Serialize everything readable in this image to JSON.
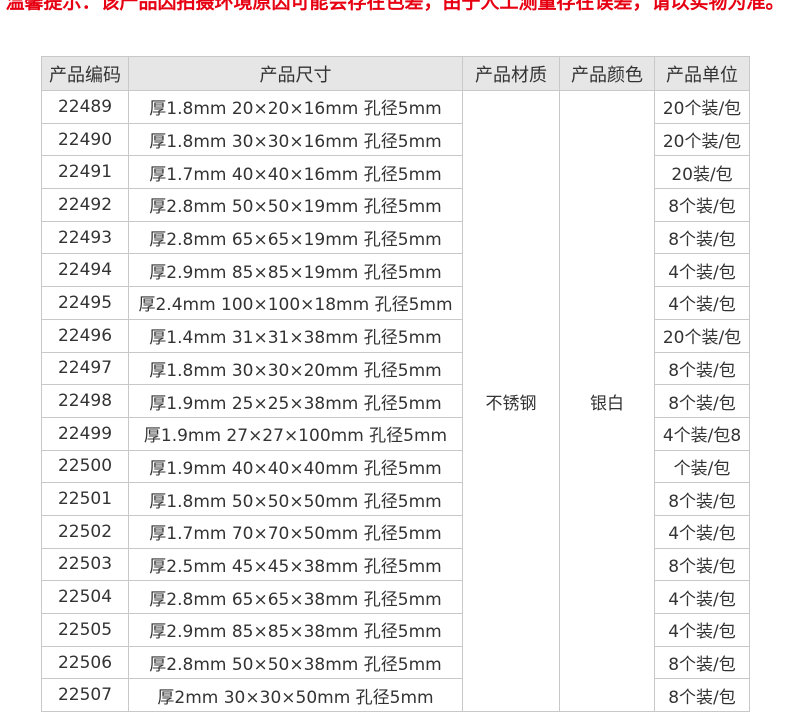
{
  "notice": "温馨提示：该产品因拍摄环境原因可能会存在色差，由于人工测量存在误差，请以实物为准。",
  "headers": [
    "产品编码",
    "产品尺寸",
    "产品材质",
    "产品颜色",
    "产品单位"
  ],
  "material": "不锈钢",
  "color": "银白",
  "rows": [
    {
      "code": "22489",
      "size": "厚1.8mm 20×20×16mm 孔径5mm",
      "unit": "20个装/包"
    },
    {
      "code": "22490",
      "size": "厚1.8mm 30×30×16mm 孔径5mm",
      "unit": "20个装/包"
    },
    {
      "code": "22491",
      "size": "厚1.7mm 40×40×16mm 孔径5mm",
      "unit": "20装/包"
    },
    {
      "code": "22492",
      "size": "厚2.8mm 50×50×19mm 孔径5mm",
      "unit": "8个装/包"
    },
    {
      "code": "22493",
      "size": "厚2.8mm 65×65×19mm 孔径5mm",
      "unit": "8个装/包"
    },
    {
      "code": "22494",
      "size": "厚2.9mm 85×85×19mm 孔径5mm",
      "unit": "4个装/包"
    },
    {
      "code": "22495",
      "size": "厚2.4mm 100×100×18mm 孔径5mm",
      "unit": "4个装/包"
    },
    {
      "code": "22496",
      "size": "厚1.4mm 31×31×38mm 孔径5mm",
      "unit": "20个装/包"
    },
    {
      "code": "22497",
      "size": "厚1.8mm 30×30×20mm 孔径5mm",
      "unit": "8个装/包"
    },
    {
      "code": "22498",
      "size": "厚1.9mm 25×25×38mm 孔径5mm",
      "unit": "8个装/包"
    },
    {
      "code": "22499",
      "size": "厚1.9mm 27×27×100mm 孔径5mm",
      "unit": "4个装/包8"
    },
    {
      "code": "22500",
      "size": "厚1.9mm 40×40×40mm 孔径5mm",
      "unit": "个装/包"
    },
    {
      "code": "22501",
      "size": "厚1.8mm 50×50×50mm 孔径5mm",
      "unit": "8个装/包"
    },
    {
      "code": "22502",
      "size": "厚1.7mm 70×70×50mm 孔径5mm",
      "unit": "4个装/包"
    },
    {
      "code": "22503",
      "size": "厚2.5mm 45×45×38mm 孔径5mm",
      "unit": "8个装/包"
    },
    {
      "code": "22504",
      "size": "厚2.8mm 65×65×38mm 孔径5mm",
      "unit": "4个装/包"
    },
    {
      "code": "22505",
      "size": "厚2.9mm 85×85×38mm 孔径5mm",
      "unit": "4个装/包"
    },
    {
      "code": "22506",
      "size": "厚2.8mm 50×50×38mm 孔径5mm",
      "unit": "8个装/包"
    },
    {
      "code": "22507",
      "size": "厚2mm 30×30×50mm 孔径5mm",
      "unit": "8个装/包"
    }
  ]
}
